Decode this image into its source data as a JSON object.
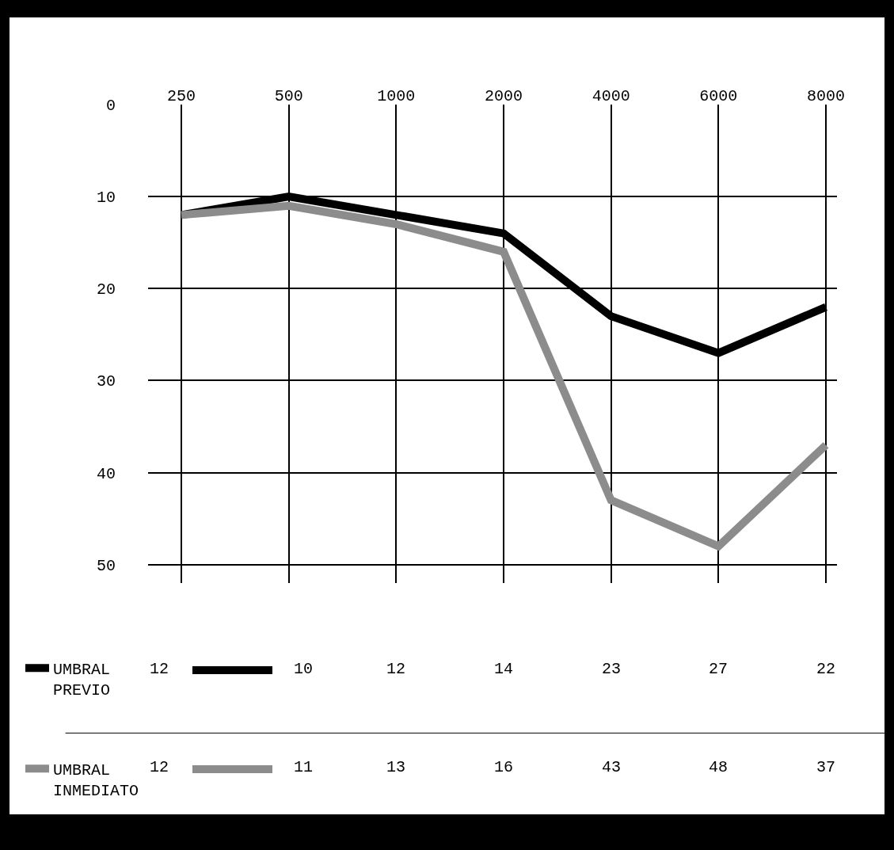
{
  "chart_data": {
    "type": "line",
    "categories": [
      "250",
      "500",
      "1000",
      "2000",
      "4000",
      "6000",
      "8000"
    ],
    "series": [
      {
        "name": "UMBRAL PREVIO",
        "color": "#000000",
        "values": [
          12,
          10,
          12,
          14,
          23,
          27,
          22
        ]
      },
      {
        "name": "UMBRAL INMEDIATO",
        "color": "#8c8c8c",
        "values": [
          12,
          11,
          13,
          16,
          43,
          48,
          37
        ]
      }
    ],
    "ylim": [
      52,
      0
    ],
    "yticks": [
      0,
      10,
      20,
      30,
      40,
      50
    ],
    "grid": true,
    "legend": "bottom left",
    "marker": "none",
    "line_style": "solid",
    "data_labels": true
  }
}
